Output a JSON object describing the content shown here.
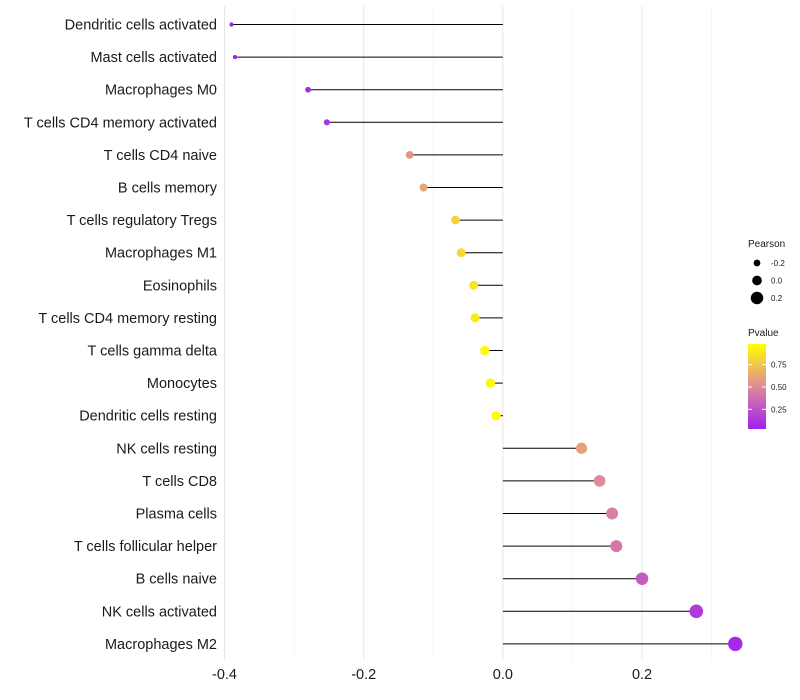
{
  "chart_data": {
    "type": "lollipop",
    "xlabel": "",
    "ylabel": "",
    "xlim": [
      -0.395,
      0.335
    ],
    "xticks": [
      -0.4,
      -0.2,
      0.0,
      0.2
    ],
    "xtick_labels": [
      "-0.4",
      "-0.2",
      "0.0",
      "0.2"
    ],
    "minor_gridlines": [
      -0.3,
      -0.1,
      0.1,
      0.3
    ],
    "categories": [
      "Dendritic cells activated",
      "Mast cells activated",
      "Macrophages M0",
      "T cells CD4 memory activated",
      "T cells CD4 naive",
      "B cells memory",
      "T cells regulatory  Tregs ",
      "Macrophages M1",
      "Eosinophils",
      "T cells CD4 memory resting",
      "T cells gamma delta",
      "Monocytes",
      "Dendritic cells resting",
      "NK cells resting",
      "T cells CD8",
      "Plasma cells",
      "T cells follicular helper",
      "B cells naive",
      "NK cells activated",
      "Macrophages M2"
    ],
    "pearson": [
      -0.39,
      -0.385,
      -0.28,
      -0.253,
      -0.134,
      -0.114,
      -0.068,
      -0.06,
      -0.042,
      -0.04,
      -0.026,
      -0.018,
      -0.01,
      0.113,
      0.139,
      0.157,
      0.163,
      0.2,
      0.278,
      0.334
    ],
    "pvalue": [
      0.03,
      0.03,
      0.08,
      0.12,
      0.55,
      0.62,
      0.8,
      0.82,
      0.88,
      0.9,
      0.95,
      0.96,
      0.98,
      0.6,
      0.5,
      0.45,
      0.42,
      0.3,
      0.15,
      0.07
    ],
    "legend": {
      "size_title": "Pearson",
      "size_values": [
        -0.2,
        0.0,
        0.2
      ],
      "size_labels": [
        "-0.2",
        "0.0",
        "0.2"
      ],
      "color_title": "Pvalue",
      "color_ticks": [
        0.75,
        0.5,
        0.25
      ],
      "color_tick_labels": [
        "0.75",
        "0.50",
        "0.25"
      ],
      "color_range": [
        0.03,
        0.98
      ],
      "color_low": "#a020f0",
      "color_high": "#ffff00",
      "position": "right"
    }
  }
}
